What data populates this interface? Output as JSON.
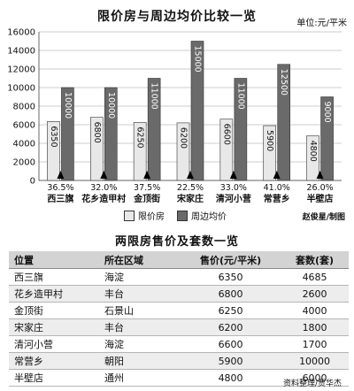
{
  "unit": "单位:元/平米",
  "legend": {
    "limited": "限价房",
    "nearby": "周边均价"
  },
  "chart_credit": "赵俊星/制图",
  "chart_data": {
    "type": "bar",
    "title": "限价房与周边均价比较一览",
    "categories": [
      "西三旗",
      "花乡造甲村",
      "金顶街",
      "宋家庄",
      "清河小营",
      "常营乡",
      "半壁店"
    ],
    "series": [
      {
        "name": "限价房",
        "values": [
          6350,
          6800,
          6250,
          6200,
          6600,
          5900,
          4800
        ],
        "color": "#e8e8e8"
      },
      {
        "name": "周边均价",
        "values": [
          10000,
          10000,
          11000,
          15000,
          11000,
          12500,
          9000
        ],
        "color": "#6a6a6a"
      }
    ],
    "ratios": [
      "36.5%",
      "32.0%",
      "37.5%",
      "22.5%",
      "33.0%",
      "41.0%",
      "26.0%"
    ],
    "yticks": [
      "0",
      "2000",
      "4000",
      "6000",
      "8000",
      "10000",
      "12000",
      "14000",
      "16000"
    ],
    "ylim": [
      0,
      16000
    ]
  },
  "table": {
    "title": "两限房售价及套数一览",
    "headers": {
      "name": "位置",
      "area": "所在区域",
      "price": "售价(元/平米)",
      "count": "套数(套)"
    },
    "rows": [
      {
        "name": "西三旗",
        "area": "海淀",
        "price": "6350",
        "count": "4685"
      },
      {
        "name": "花乡造甲村",
        "area": "丰台",
        "price": "6800",
        "count": "2600"
      },
      {
        "name": "金顶街",
        "area": "石景山",
        "price": "6250",
        "count": "4000"
      },
      {
        "name": "宋家庄",
        "area": "丰台",
        "price": "6200",
        "count": "1800"
      },
      {
        "name": "清河小营",
        "area": "海淀",
        "price": "6600",
        "count": "1700"
      },
      {
        "name": "常营乡",
        "area": "朝阳",
        "price": "5900",
        "count": "10000"
      },
      {
        "name": "半壁店",
        "area": "通州",
        "price": "4800",
        "count": "6000"
      }
    ]
  },
  "table_credit": "资料整理/贾华杰"
}
